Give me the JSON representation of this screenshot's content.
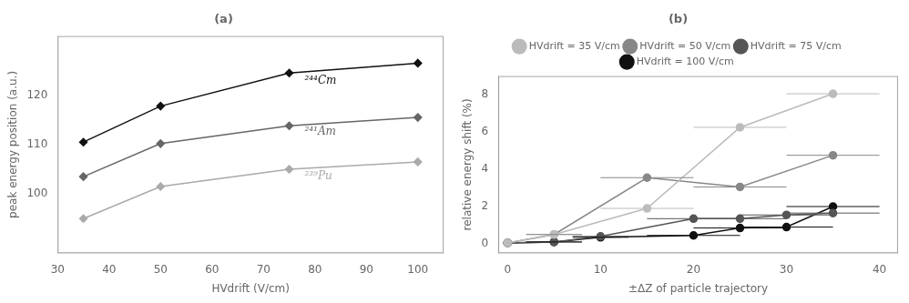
{
  "chart_data": [
    {
      "type": "line",
      "title": "(a)",
      "xlabel": "HVdrift (V/cm)",
      "ylabel": "peak energy position (a.u.)",
      "xlim": [
        30,
        105
      ],
      "ylim": [
        88,
        132
      ],
      "xticks": [
        30,
        40,
        50,
        60,
        70,
        80,
        90,
        100
      ],
      "yticks": [
        100,
        110,
        120
      ],
      "grid": false,
      "marker": "diamond",
      "x": [
        35,
        50,
        75,
        100
      ],
      "series": [
        {
          "color": "#111111",
          "values": [
            110.5,
            117.8,
            124.5,
            126.5
          ]
        },
        {
          "color": "#666666",
          "values": [
            103.5,
            110.2,
            113.8,
            115.5
          ]
        },
        {
          "color": "#aaaaaa",
          "values": [
            95.0,
            101.5,
            105.0,
            106.5
          ]
        }
      ],
      "annotations": [
        {
          "text": "²⁴⁴Cm",
          "x": 78,
          "y": 123.0,
          "color": "#111111"
        },
        {
          "text": "²⁴¹Am",
          "x": 78,
          "y": 112.5,
          "color": "#666666"
        },
        {
          "text": "²³⁹Pu",
          "x": 78,
          "y": 103.5,
          "color": "#aaaaaa"
        }
      ]
    },
    {
      "type": "line",
      "title": "(b)",
      "xlabel": "±ΔZ of particle trajectory",
      "ylabel": "relative energy shift (%)",
      "xlim": [
        -1,
        42
      ],
      "ylim": [
        -0.5,
        9.0
      ],
      "xticks": [
        0,
        10,
        20,
        30,
        40
      ],
      "yticks": [
        0,
        2,
        4,
        6,
        8
      ],
      "grid": false,
      "legend": "top",
      "marker": "circle",
      "series": [
        {
          "name": "HVdrift = 35 V/cm",
          "color": "#bbbbbb",
          "x": [
            0,
            5,
            15,
            25,
            35
          ],
          "values": [
            0.05,
            0.5,
            1.9,
            6.25,
            8.05
          ],
          "xerr": [
            0,
            3,
            5,
            5,
            5
          ]
        },
        {
          "name": "HVdrift = 50 V/cm",
          "color": "#888888",
          "x": [
            0,
            5,
            15,
            25,
            35
          ],
          "values": [
            0.05,
            0.5,
            3.55,
            3.05,
            4.75
          ],
          "xerr": [
            0,
            3,
            5,
            5,
            5
          ]
        },
        {
          "name": "HVdrift = 75 V/cm",
          "color": "#555555",
          "x": [
            0,
            5,
            10,
            20,
            25,
            30,
            35
          ],
          "values": [
            0.05,
            0.1,
            0.4,
            1.35,
            1.35,
            1.55,
            1.65
          ],
          "xerr": [
            0,
            3,
            3,
            5,
            5,
            5,
            5
          ]
        },
        {
          "name": "HVdrift = 100 V/cm",
          "color": "#111111",
          "x": [
            0,
            5,
            10,
            20,
            25,
            30,
            35
          ],
          "values": [
            0.05,
            0.1,
            0.35,
            0.45,
            0.85,
            0.9,
            2.0
          ],
          "xerr": [
            0,
            3,
            3,
            5,
            5,
            5,
            5
          ]
        }
      ]
    }
  ]
}
